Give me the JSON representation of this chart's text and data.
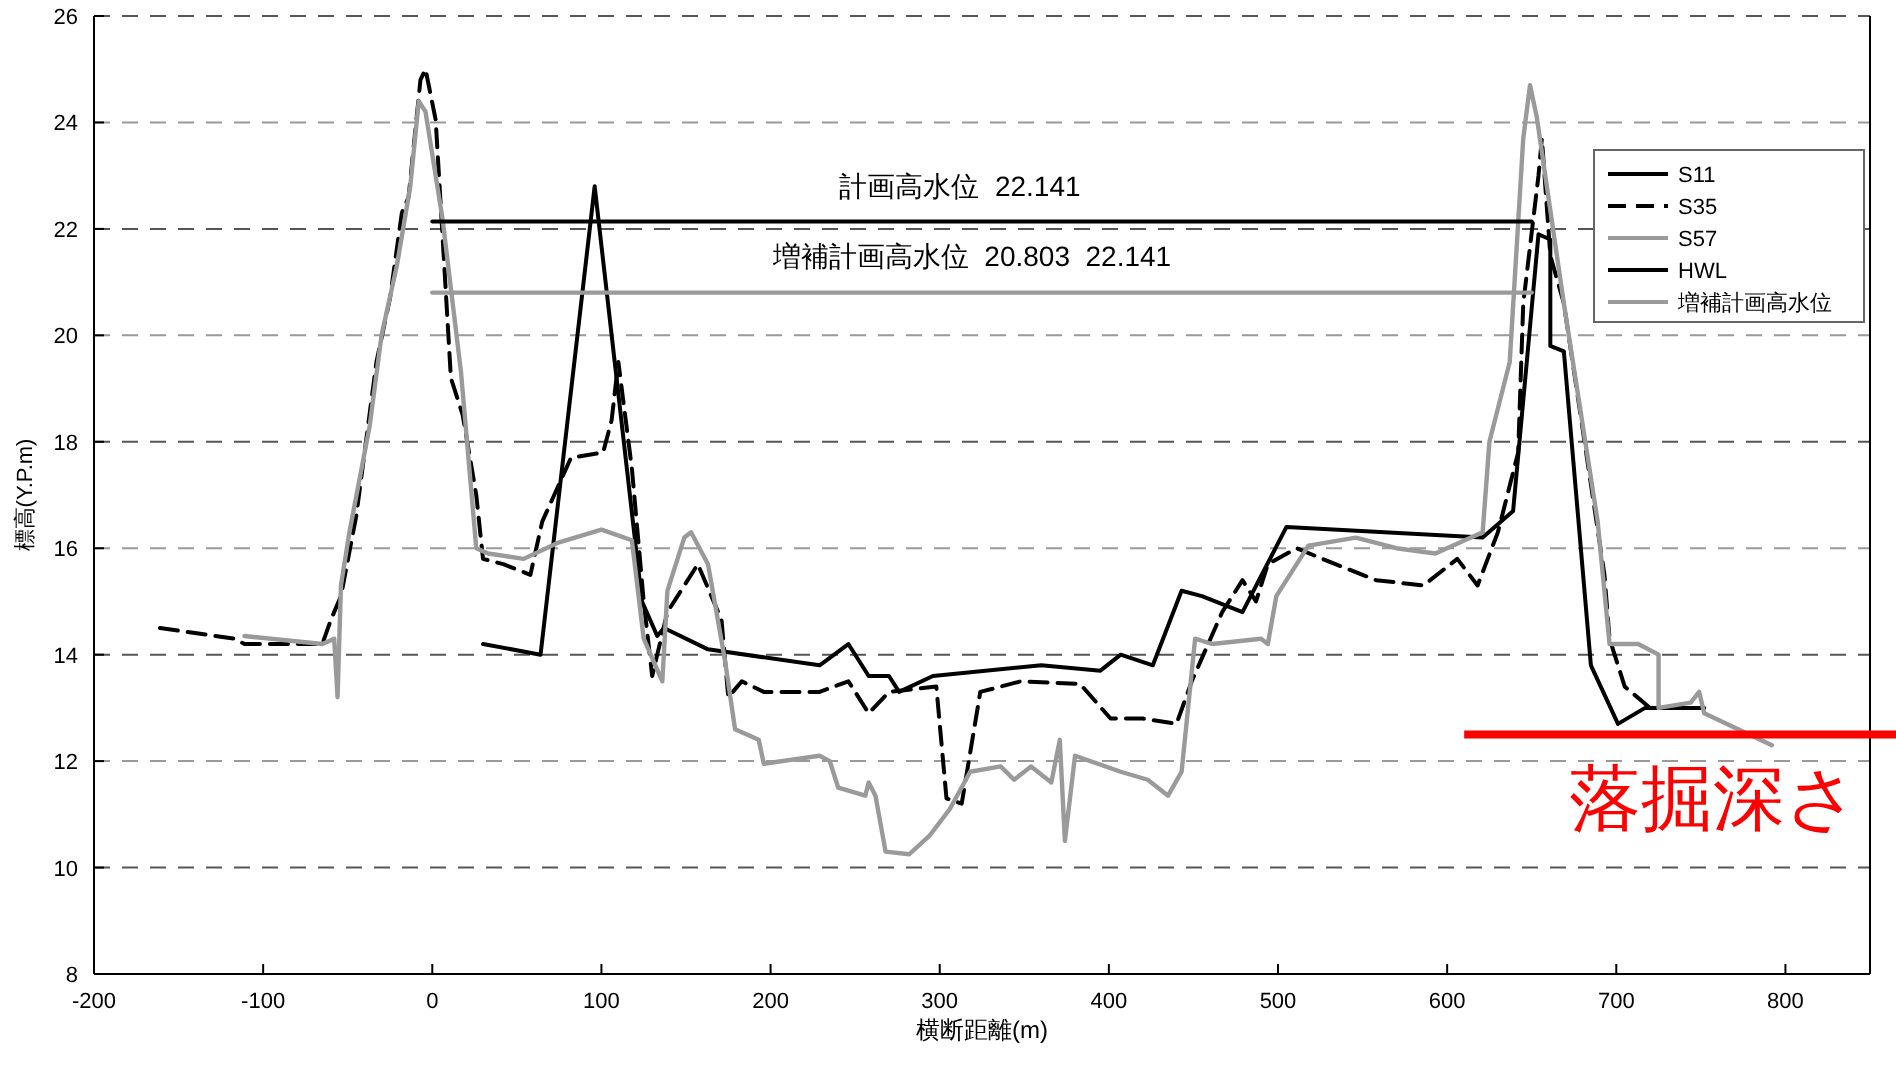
{
  "chart_data": {
    "type": "line",
    "xlabel": "横断距離(m)",
    "ylabel": "標高(Y.P.m)",
    "xlim": [
      -200,
      850
    ],
    "xticks": [
      -200,
      -100,
      0,
      100,
      200,
      300,
      400,
      500,
      600,
      700,
      800
    ],
    "ylim": [
      8,
      26
    ],
    "yticks": [
      8,
      10,
      12,
      14,
      16,
      18,
      20,
      22,
      24,
      26
    ],
    "grid": "y",
    "legend": "top right",
    "series": [
      {
        "name": "S11",
        "color": "#000000",
        "line_style": "solid",
        "x": [
          30,
          64,
          96,
          124,
          133,
          137,
          163,
          229,
          246,
          258,
          270,
          276,
          296,
          360,
          395,
          407,
          426,
          443,
          455,
          479,
          505,
          621,
          639,
          654,
          661,
          661,
          669,
          685,
          701,
          717,
          752
        ],
        "values": [
          14.2,
          14.0,
          22.8,
          15.0,
          14.35,
          14.5,
          14.1,
          13.8,
          14.2,
          13.6,
          13.6,
          13.3,
          13.6,
          13.8,
          13.7,
          14.0,
          13.8,
          15.2,
          15.1,
          14.8,
          16.4,
          16.2,
          16.7,
          21.9,
          21.8,
          19.8,
          19.7,
          13.8,
          12.7,
          13.0,
          13.0
        ]
      },
      {
        "name": "S35",
        "color": "#000000",
        "line_style": "dashed",
        "x": [
          -161,
          -117,
          -111,
          -65,
          -60,
          -54,
          -45,
          -33,
          -25,
          -18,
          -14,
          -7,
          -4,
          2,
          11,
          18,
          26,
          30,
          42,
          58,
          65,
          82,
          101,
          106,
          110,
          118,
          125,
          130,
          139,
          157,
          171,
          175,
          183,
          196,
          229,
          246,
          258,
          270,
          298,
          304,
          313,
          324,
          348,
          383,
          401,
          420,
          440,
          449,
          467,
          479,
          487,
          494,
          511,
          534,
          558,
          586,
          606,
          618,
          630,
          642,
          645,
          654,
          656,
          661,
          669,
          693,
          696,
          705,
          720,
          733
        ],
        "values": [
          14.5,
          14.3,
          14.2,
          14.2,
          14.65,
          15.1,
          16.6,
          19.5,
          20.7,
          22.3,
          22.6,
          24.8,
          25.0,
          24.05,
          19.2,
          18.5,
          17.0,
          15.8,
          15.7,
          15.5,
          16.5,
          17.7,
          17.8,
          18.4,
          19.5,
          17.5,
          15.0,
          13.6,
          14.8,
          15.7,
          14.65,
          13.2,
          13.5,
          13.3,
          13.3,
          13.5,
          12.9,
          13.3,
          13.4,
          11.3,
          11.2,
          13.3,
          13.5,
          13.45,
          12.8,
          12.8,
          12.7,
          13.5,
          14.8,
          15.4,
          15.0,
          15.7,
          16.0,
          15.7,
          15.4,
          15.3,
          15.8,
          15.3,
          16.3,
          17.8,
          20.6,
          23.0,
          23.7,
          21.5,
          20.6,
          15.5,
          14.3,
          13.4,
          13.0,
          13.0
        ]
      },
      {
        "name": "S57",
        "color": "#9a9a9a",
        "line_style": "solid",
        "x": [
          -111,
          -65,
          -58,
          -56,
          -54,
          -49,
          -37,
          -30,
          -21,
          -13,
          -8,
          -4,
          6,
          17,
          26,
          33,
          54,
          74,
          100,
          118,
          125,
          136,
          139,
          149,
          153,
          163,
          173,
          179,
          193,
          196,
          229,
          235,
          240,
          256,
          258,
          262,
          268,
          282,
          294,
          306,
          318,
          336,
          344,
          354,
          366,
          371,
          374,
          380,
          407,
          423,
          435,
          443,
          451,
          461,
          490,
          494,
          499,
          518,
          546,
          570,
          593,
          621,
          625,
          637,
          645,
          649,
          653,
          669,
          689,
          696,
          713,
          725,
          725,
          744,
          749,
          752,
          792
        ],
        "values": [
          14.35,
          14.2,
          14.3,
          13.2,
          15.3,
          16.3,
          18.3,
          20.0,
          21.3,
          22.8,
          24.4,
          24.2,
          22.2,
          19.3,
          16.0,
          15.9,
          15.8,
          16.1,
          16.35,
          16.15,
          14.3,
          13.5,
          15.2,
          16.2,
          16.3,
          15.7,
          13.9,
          12.6,
          12.4,
          11.95,
          12.1,
          12.0,
          11.5,
          11.35,
          11.6,
          11.35,
          10.3,
          10.25,
          10.6,
          11.1,
          11.8,
          11.9,
          11.65,
          11.9,
          11.6,
          12.4,
          10.5,
          12.1,
          11.8,
          11.65,
          11.35,
          11.8,
          14.3,
          14.2,
          14.3,
          14.2,
          15.1,
          16.05,
          16.2,
          16.0,
          15.9,
          16.3,
          18.0,
          19.5,
          23.7,
          24.7,
          24.1,
          20.6,
          16.5,
          14.2,
          14.2,
          14.0,
          13.0,
          13.1,
          13.3,
          12.9,
          12.3
        ]
      },
      {
        "name": "HWL",
        "color": "#000000",
        "line_style": "solid",
        "x": [
          0,
          650
        ],
        "values": [
          22.141,
          22.141
        ]
      },
      {
        "name": "増補計画高水位",
        "color": "#9a9a9a",
        "line_style": "solid",
        "x": [
          0,
          650
        ],
        "values": [
          20.803,
          20.803
        ]
      }
    ],
    "ref_lines": [
      {
        "axis": "y",
        "value": 12.5,
        "label": "落掘深さ",
        "color": "#ff0000"
      }
    ],
    "annotations": [
      "計画高水位  22.141",
      "増補計画高水位  20.803  22.141"
    ]
  }
}
